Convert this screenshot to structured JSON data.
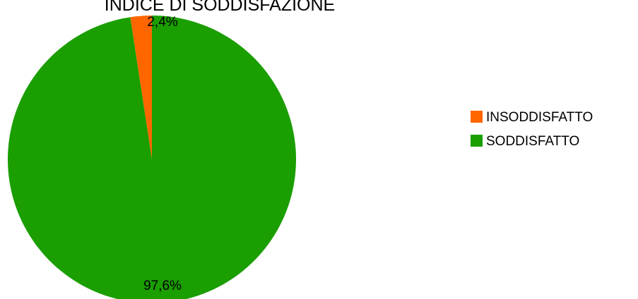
{
  "chart_data": {
    "type": "pie",
    "title": "INDICE DI SODDISFAZIONE",
    "categories": [
      "INSODDISFATTO",
      "SODDISFATTO"
    ],
    "values": [
      2.4,
      97.6
    ],
    "data_labels": [
      "2,4%",
      "97,6%"
    ],
    "colors": [
      "#ff6600",
      "#1a9e00"
    ],
    "legend": {
      "position": "right",
      "entries": [
        "INSODDISFATTO",
        "SODDISFATTO"
      ]
    }
  }
}
